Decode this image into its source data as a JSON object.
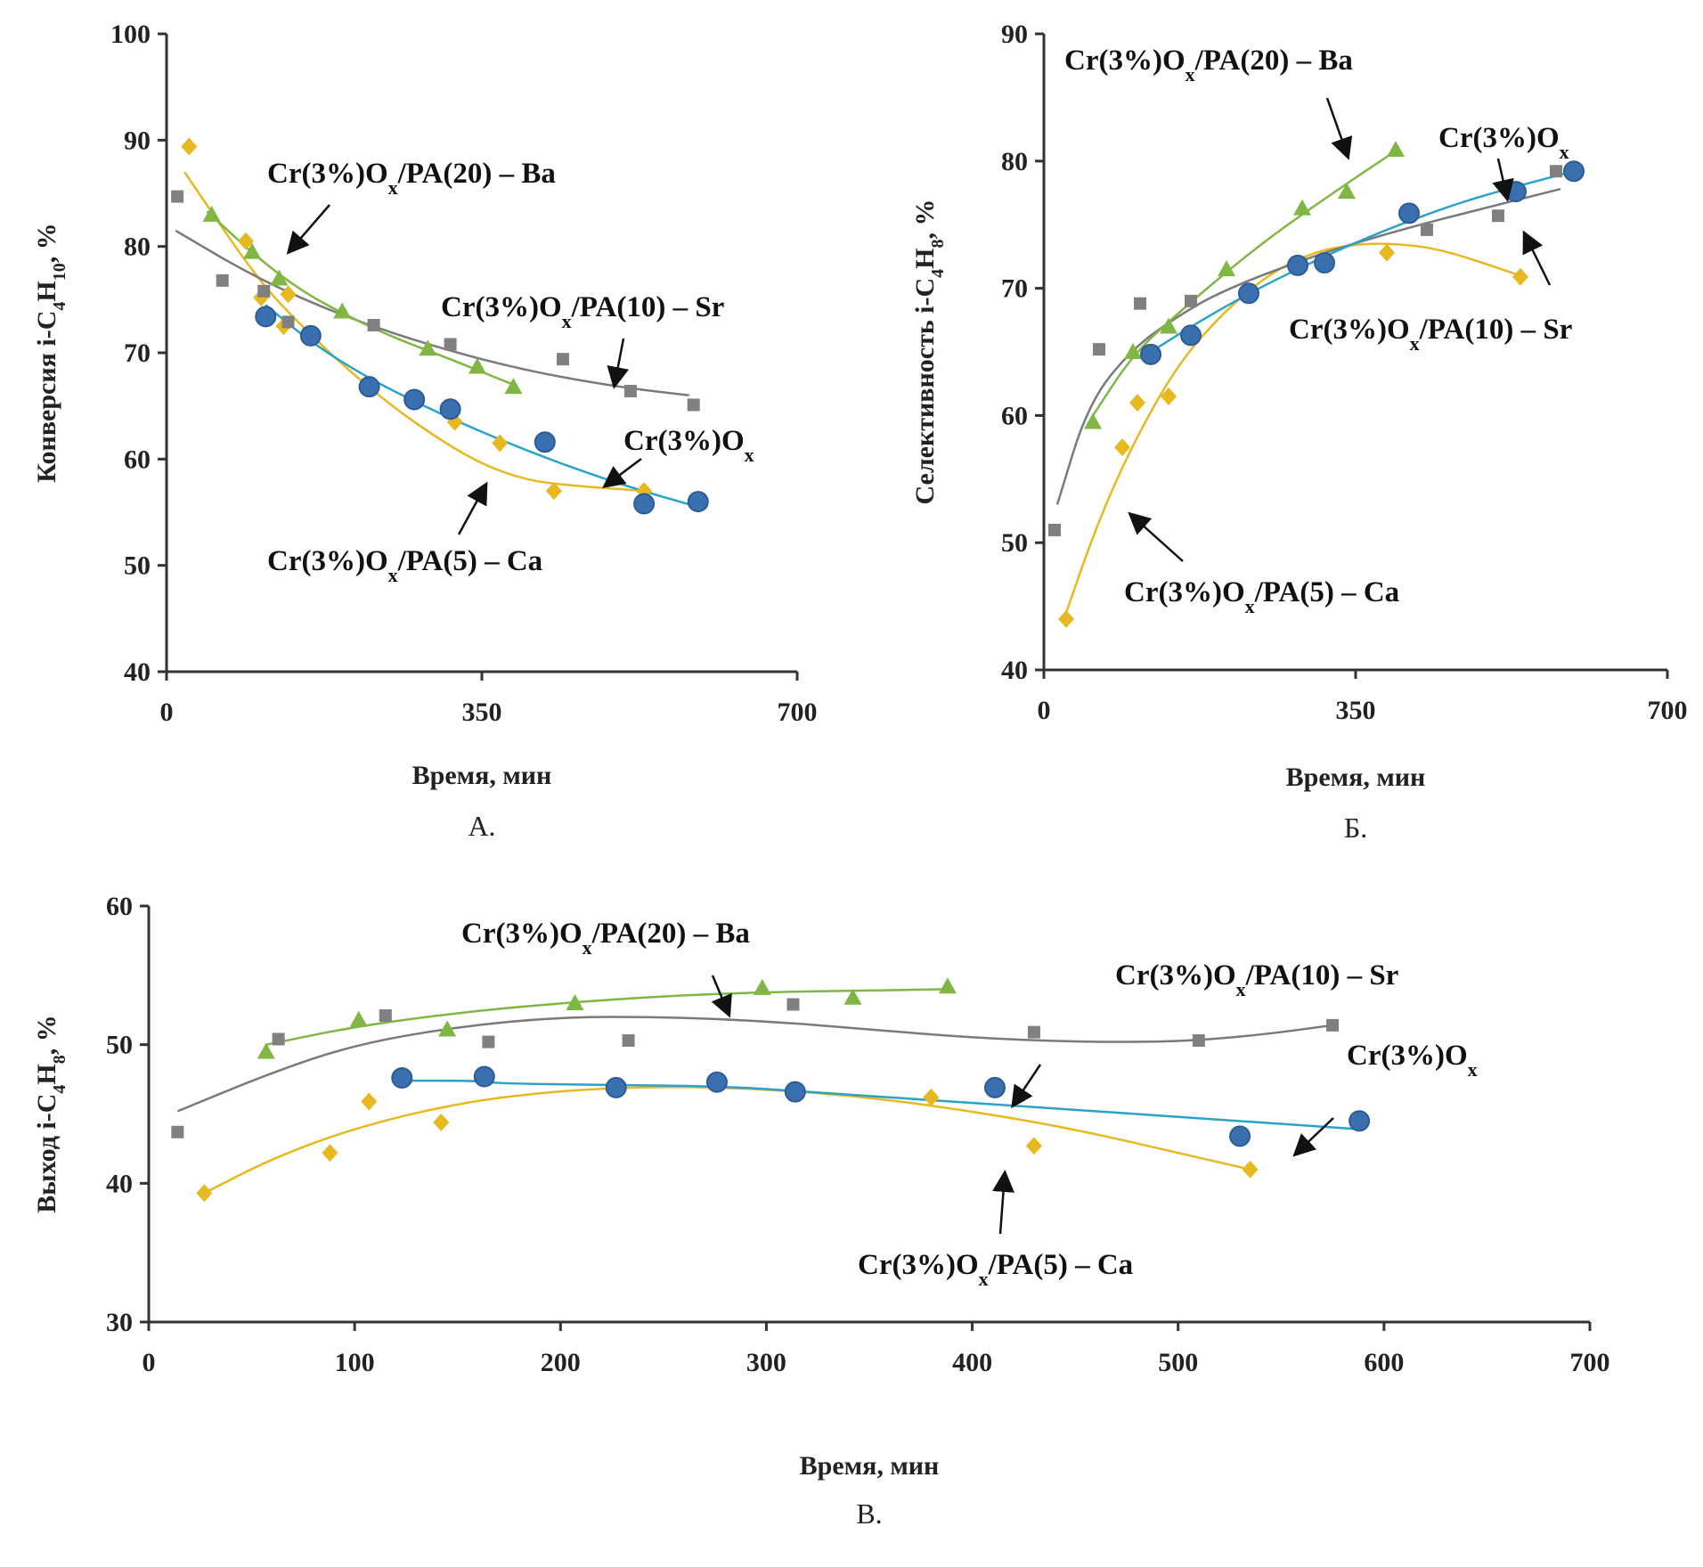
{
  "chart_data": [
    {
      "id": "A",
      "type": "scatter",
      "caption": "А.",
      "xlabel": "Время, мин",
      "ylabel": {
        "pre": "Конверсия i-C",
        "s1": "4",
        "mid": "H",
        "s2": "10",
        "post": ", %"
      },
      "xlim": [
        0,
        700
      ],
      "ylim": [
        40,
        100
      ],
      "xticks": [
        0,
        350,
        700
      ],
      "yticks": [
        40,
        50,
        60,
        70,
        80,
        90,
        100
      ],
      "grid": false,
      "series": [
        {
          "name": "Cr(3%)Ox/PA(5) – Ca",
          "marker": "diamond",
          "color": "#e8b820",
          "x": [
            25,
            88,
            105,
            130,
            135,
            225,
            275,
            320,
            370,
            430,
            530
          ],
          "y": [
            89.4,
            80.5,
            75.2,
            72.5,
            75.5,
            66.8,
            65.5,
            63.5,
            61.5,
            57.0,
            57.0
          ],
          "trend_x": [
            20,
            100,
            150,
            200,
            250,
            300,
            350,
            400,
            450,
            500,
            530
          ],
          "trend_y": [
            87.0,
            77.0,
            72.5,
            68.5,
            65.0,
            62.0,
            59.5,
            58.0,
            57.5,
            57.2,
            57.0
          ]
        },
        {
          "name": "Cr(3%)Ox/PA(10) – Sr",
          "marker": "square",
          "color": "#808080",
          "x": [
            12,
            62,
            108,
            135,
            230,
            315,
            440,
            515,
            585
          ],
          "y": [
            84.7,
            76.8,
            75.8,
            72.9,
            72.6,
            70.8,
            69.4,
            66.4,
            65.1
          ],
          "trend_x": [
            10,
            100,
            200,
            300,
            400,
            500,
            580
          ],
          "trend_y": [
            81.5,
            77.0,
            73.3,
            70.5,
            68.3,
            66.8,
            66.0
          ]
        },
        {
          "name": "Cr(3%)Ox/PA(20) – Ba",
          "marker": "triangle",
          "color": "#7fb644",
          "x": [
            50,
            95,
            125,
            195,
            290,
            345,
            385
          ],
          "y": [
            83.0,
            79.5,
            77.0,
            73.9,
            70.4,
            68.7,
            66.8
          ],
          "trend_x": [
            45,
            100,
            150,
            200,
            250,
            300,
            350,
            385
          ],
          "trend_y": [
            83.3,
            79.0,
            75.8,
            73.5,
            71.5,
            69.9,
            68.2,
            67.0
          ]
        },
        {
          "name": "Cr(3%)Ox",
          "marker": "circle",
          "color": "#3a6fb0",
          "x": [
            110,
            160,
            225,
            275,
            315,
            420,
            530,
            590
          ],
          "y": [
            73.4,
            71.6,
            66.8,
            65.6,
            64.7,
            61.6,
            55.8,
            56.0
          ],
          "trend_x": [
            110,
            160,
            220,
            280,
            340,
            400,
            460,
            520,
            590
          ],
          "trend_y": [
            74.5,
            71.0,
            67.8,
            65.2,
            62.9,
            60.8,
            58.9,
            57.2,
            55.5
          ]
        }
      ],
      "annotations": [
        {
          "text": "Cr(3%)O",
          "sub": "x",
          "rest": "/PA(20) – Ba"
        },
        {
          "text": "Cr(3%)O",
          "sub": "x",
          "rest": "/PA(10) – Sr"
        },
        {
          "text": "Cr(3%)O",
          "sub": "x",
          "rest": ""
        },
        {
          "text": "Cr(3%)O",
          "sub": "x",
          "rest": "/PA(5) – Ca"
        }
      ]
    },
    {
      "id": "B",
      "type": "scatter",
      "caption": "Б.",
      "xlabel": "Время, мин",
      "ylabel": {
        "pre": "Селективность i-C",
        "s1": "4",
        "mid": "H",
        "s2": "8",
        "post": ", %"
      },
      "xlim": [
        0,
        700
      ],
      "ylim": [
        40,
        90
      ],
      "xticks": [
        0,
        350,
        700
      ],
      "yticks": [
        40,
        50,
        60,
        70,
        80,
        90
      ],
      "grid": false,
      "series": [
        {
          "name": "Cr(3%)Ox/PA(5) – Ca",
          "marker": "diamond",
          "color": "#e8b820",
          "x": [
            25,
            88,
            105,
            140,
            385,
            535
          ],
          "y": [
            44.0,
            57.5,
            61.0,
            61.5,
            72.8,
            70.9
          ],
          "trend_x": [
            25,
            60,
            100,
            150,
            200,
            250,
            300,
            350,
            400,
            450,
            535
          ],
          "trend_y": [
            44.5,
            51.5,
            57.8,
            64.0,
            68.0,
            71.0,
            72.8,
            73.5,
            73.5,
            73.0,
            71.0
          ]
        },
        {
          "name": "Cr(3%)Ox/PA(10) – Sr",
          "marker": "square",
          "color": "#808080",
          "x": [
            12,
            62,
            108,
            165,
            430,
            510,
            575
          ],
          "y": [
            51.0,
            65.2,
            68.8,
            69.0,
            74.6,
            75.7,
            79.2
          ],
          "trend_x": [
            15,
            50,
            100,
            150,
            200,
            300,
            400,
            500,
            580
          ],
          "trend_y": [
            53.0,
            61.0,
            65.3,
            67.8,
            69.8,
            72.5,
            74.6,
            76.4,
            77.8
          ]
        },
        {
          "name": "Cr(3%)Ox/PA(20) – Ba",
          "marker": "triangle",
          "color": "#7fb644",
          "x": [
            55,
            100,
            140,
            205,
            290,
            340,
            395
          ],
          "y": [
            59.5,
            65.0,
            67.0,
            71.5,
            76.3,
            77.6,
            80.9
          ],
          "trend_x": [
            55,
            100,
            150,
            200,
            250,
            300,
            350,
            395
          ],
          "trend_y": [
            60.0,
            64.8,
            68.0,
            71.0,
            73.8,
            76.3,
            78.7,
            80.8
          ]
        },
        {
          "name": "Cr(3%)Ox",
          "marker": "circle",
          "color": "#3a6fb0",
          "x": [
            120,
            165,
            230,
            285,
            315,
            410,
            530,
            595
          ],
          "y": [
            64.8,
            66.3,
            69.6,
            71.8,
            72.0,
            75.9,
            77.6,
            79.2
          ],
          "trend_x": [
            120,
            170,
            230,
            290,
            350,
            410,
            470,
            530,
            595
          ],
          "trend_y": [
            65.0,
            67.2,
            69.6,
            71.7,
            73.6,
            75.3,
            76.8,
            78.0,
            79.2
          ]
        }
      ],
      "annotations": [
        {
          "text": "Cr(3%)O",
          "sub": "x",
          "rest": "/PA(20) – Ba"
        },
        {
          "text": "Cr(3%)O",
          "sub": "x",
          "rest": ""
        },
        {
          "text": "Cr(3%)O",
          "sub": "x",
          "rest": "/PA(10) – Sr"
        },
        {
          "text": "Cr(3%)O",
          "sub": "x",
          "rest": "/PA(5) – Ca"
        }
      ]
    },
    {
      "id": "C",
      "type": "scatter",
      "caption": "В.",
      "xlabel": "Время, мин",
      "ylabel": {
        "pre": "Выход i-C",
        "s1": "4",
        "mid": "H",
        "s2": "8",
        "post": ", %"
      },
      "xlim": [
        0,
        700
      ],
      "ylim": [
        30,
        60
      ],
      "xticks": [
        0,
        100,
        200,
        300,
        400,
        500,
        600,
        700
      ],
      "yticks": [
        30,
        40,
        50,
        60
      ],
      "grid": false,
      "series": [
        {
          "name": "Cr(3%)Ox/PA(5) – Ca",
          "marker": "diamond",
          "color": "#e8b820",
          "x": [
            27,
            88,
            107,
            142,
            380,
            430,
            535
          ],
          "y": [
            39.3,
            42.2,
            45.9,
            44.4,
            46.2,
            42.7,
            41.0
          ],
          "trend_x": [
            27,
            60,
            100,
            150,
            200,
            250,
            300,
            350,
            400,
            450,
            500,
            535
          ],
          "trend_y": [
            39.3,
            41.8,
            44.0,
            45.8,
            46.7,
            47.0,
            46.8,
            46.2,
            45.2,
            43.9,
            42.2,
            41.0
          ]
        },
        {
          "name": "Cr(3%)Ox/PA(10) – Sr",
          "marker": "square",
          "color": "#808080",
          "x": [
            14,
            63,
            115,
            165,
            233,
            313,
            430,
            510,
            575
          ],
          "y": [
            43.7,
            50.4,
            52.1,
            50.2,
            50.3,
            52.9,
            50.9,
            50.3,
            51.4
          ],
          "trend_x": [
            14,
            60,
            100,
            150,
            200,
            250,
            300,
            350,
            400,
            450,
            500,
            540,
            575
          ],
          "trend_y": [
            45.2,
            48.0,
            50.0,
            51.3,
            52.0,
            52.0,
            51.7,
            51.1,
            50.5,
            50.2,
            50.2,
            50.7,
            51.4
          ]
        },
        {
          "name": "Cr(3%)Ox/PA(20) – Ba",
          "marker": "triangle",
          "color": "#7fb644",
          "x": [
            57,
            102,
            145,
            207,
            298,
            342,
            388
          ],
          "y": [
            49.5,
            51.8,
            51.1,
            53.0,
            54.1,
            53.4,
            54.2
          ],
          "trend_x": [
            57,
            100,
            150,
            200,
            250,
            300,
            350,
            388
          ],
          "trend_y": [
            50.0,
            51.3,
            52.3,
            53.0,
            53.5,
            53.8,
            53.9,
            54.0
          ]
        },
        {
          "name": "Cr(3%)Ox",
          "marker": "circle",
          "color": "#3a6fb0",
          "x": [
            123,
            163,
            227,
            276,
            314,
            411,
            530,
            588
          ],
          "y": [
            47.6,
            47.7,
            46.9,
            47.3,
            46.6,
            46.9,
            43.4,
            44.5
          ],
          "trend_x": [
            123,
            160,
            170,
            220,
            280,
            320,
            400,
            500,
            588
          ],
          "trend_y": [
            47.4,
            47.4,
            47.2,
            47.1,
            47.0,
            46.6,
            45.8,
            44.8,
            43.9
          ]
        }
      ],
      "annotations": [
        {
          "text": "Cr(3%)O",
          "sub": "x",
          "rest": "/PA(20) – Ba"
        },
        {
          "text": "Cr(3%)O",
          "sub": "x",
          "rest": "/PA(10) – Sr"
        },
        {
          "text": "Cr(3%)O",
          "sub": "x",
          "rest": ""
        },
        {
          "text": "Cr(3%)O",
          "sub": "x",
          "rest": "/PA(5) – Ca"
        }
      ]
    }
  ]
}
